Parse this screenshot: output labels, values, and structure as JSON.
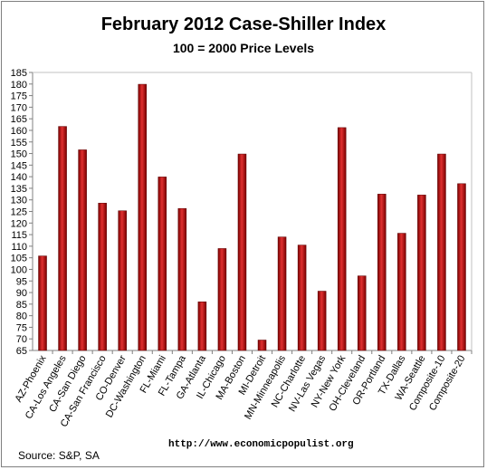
{
  "chart_data": {
    "type": "bar",
    "title": "February 2012 Case-Shiller Index",
    "subtitle": "100 = 2000 Price Levels",
    "categories": [
      "AZ-Phoenix",
      "CA-Los Angeles",
      "CA-San Diego",
      "CA-San Francisco",
      "CO-Denver",
      "DC-Washington",
      "FL-Miami",
      "FL-Tampa",
      "GA-Atlanta",
      "IL-Chicago",
      "MA-Boston",
      "MI-Detroit",
      "MN-Minneapolis",
      "NC-Charlotte",
      "NV-Las Vegas",
      "NY-New York",
      "OH-Cleveland",
      "OR-Portland",
      "TX-Dallas",
      "WA-Seattle",
      "Composite-10",
      "Composite-20"
    ],
    "values": [
      105.8,
      161.7,
      151.6,
      128.6,
      125.3,
      179.9,
      139.9,
      126.3,
      86.0,
      109.0,
      149.8,
      69.5,
      114.0,
      110.5,
      90.6,
      161.2,
      97.2,
      132.5,
      115.6,
      132.1,
      149.8,
      137.0
    ],
    "ylim": [
      65,
      185
    ],
    "ytick_step": 5,
    "yticks": [
      "65",
      "70",
      "75",
      "80",
      "85",
      "90",
      "95",
      "100",
      "105",
      "110",
      "115",
      "120",
      "125",
      "130",
      "135",
      "140",
      "145",
      "150",
      "155",
      "160",
      "165",
      "170",
      "175",
      "180",
      "185"
    ],
    "grid": false,
    "legend": "none",
    "bar_color_light": "#e03030",
    "bar_color_dark": "#7a0000",
    "xlabel": "",
    "ylabel": ""
  },
  "footer": {
    "source": "Source:  S&P, SA",
    "url": "http://www.economicpopulist.org"
  }
}
